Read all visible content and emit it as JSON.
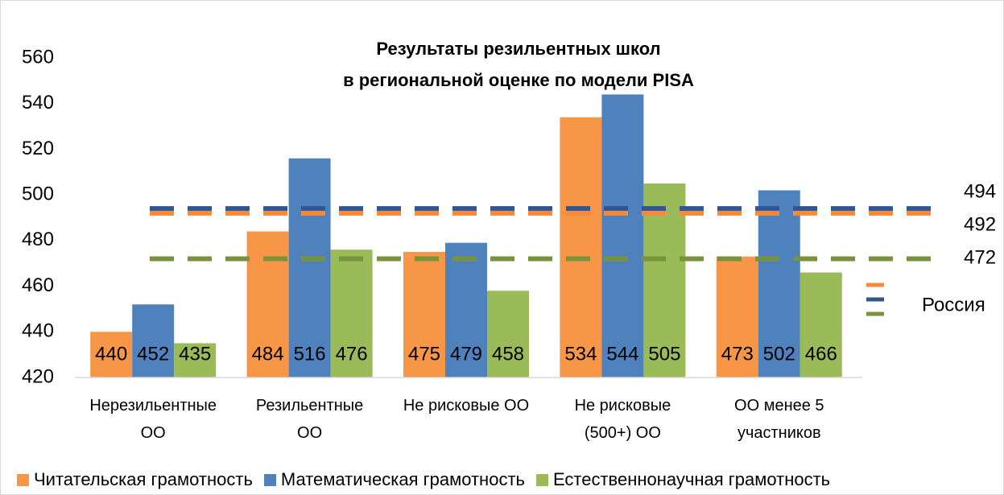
{
  "chart_data": {
    "type": "bar",
    "title": "Результаты резильентных школ\nв региональной оценке по модели PISA",
    "categories": [
      "Нерезильентные\nОО",
      "Резильентные\nОО",
      "Не рисковые ОО",
      "Не рисковые\n(500+) ОО",
      "ОО менее 5\nучастников"
    ],
    "series": [
      {
        "name": "Читательская грамотность",
        "color": "#f79646",
        "values": [
          440,
          484,
          475,
          534,
          473
        ]
      },
      {
        "name": "Математическая грамотность",
        "color": "#4f81bd",
        "values": [
          452,
          516,
          479,
          544,
          502
        ]
      },
      {
        "name": "Естественнонаучная грамотность",
        "color": "#9bbb59",
        "values": [
          435,
          476,
          458,
          505,
          466
        ]
      }
    ],
    "reference_lines": {
      "name": "Россия",
      "lines": [
        {
          "value": 494,
          "color": "#2f5597",
          "label_color": "#1f3864"
        },
        {
          "value": 492,
          "color": "#f48a3c",
          "label_color": "#ed7d31"
        },
        {
          "value": 472,
          "color": "#77933c",
          "label_color": "#548235"
        }
      ]
    },
    "ylim": [
      420,
      560
    ],
    "yticks": [
      420,
      440,
      460,
      480,
      500,
      520,
      540,
      560
    ],
    "grid": false,
    "legend": "bottom"
  }
}
